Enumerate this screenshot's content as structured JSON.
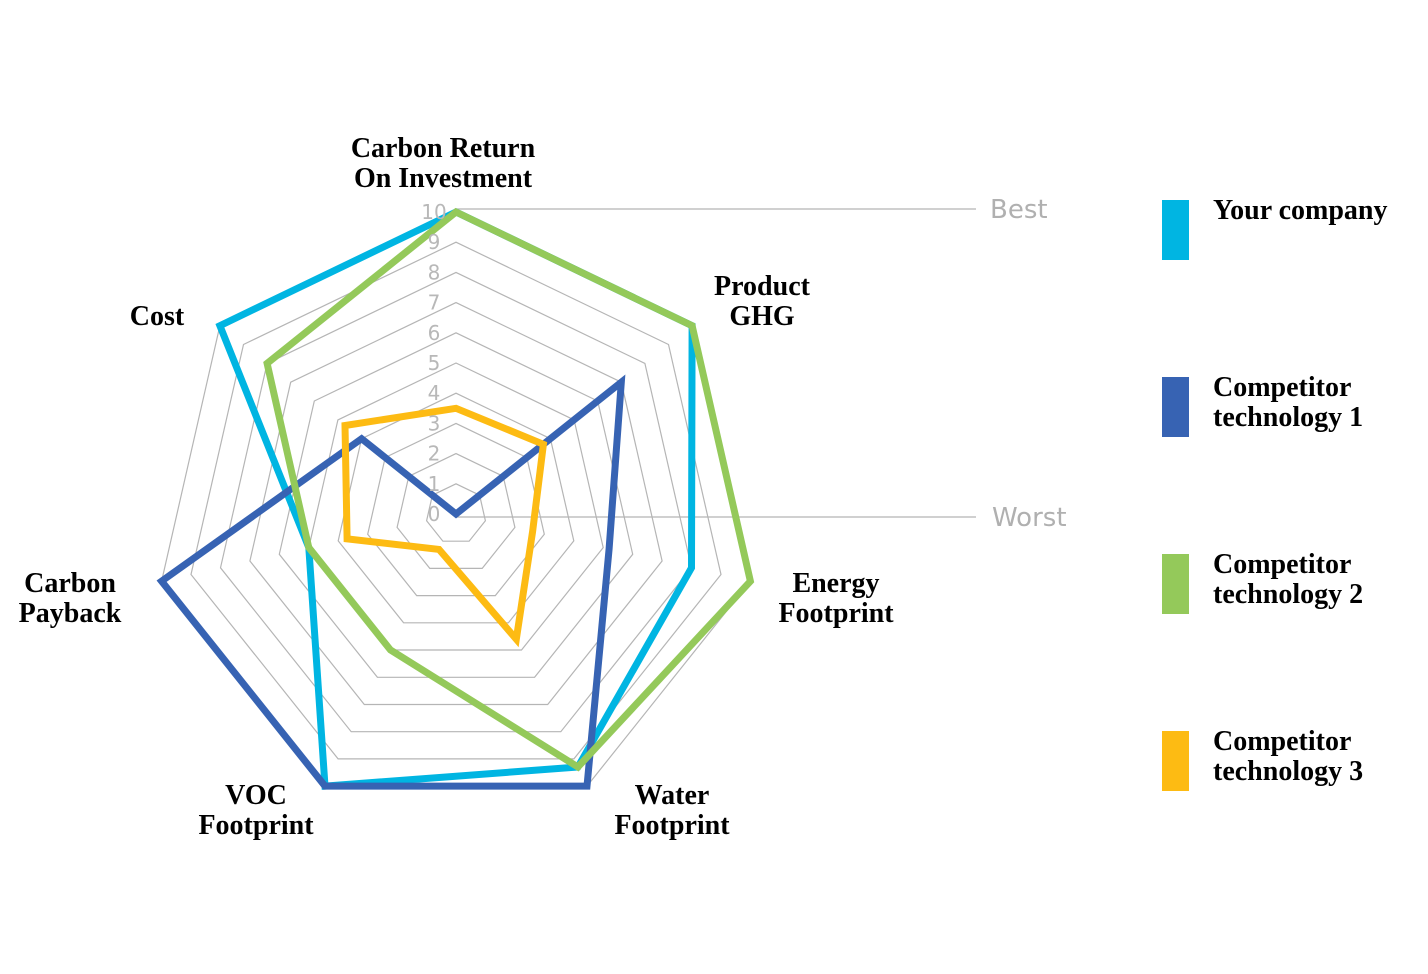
{
  "chart_data": {
    "type": "radar",
    "axes": [
      [
        "Carbon Return",
        "On Investment"
      ],
      [
        "Product",
        "GHG"
      ],
      [
        "Energy",
        "Footprint"
      ],
      [
        "Water",
        "Footprint"
      ],
      [
        "VOC",
        "Footprint"
      ],
      [
        "Carbon",
        "Payback"
      ],
      [
        "Cost"
      ]
    ],
    "ticks": [
      "0",
      "1",
      "2",
      "3",
      "4",
      "5",
      "6",
      "7",
      "8",
      "9",
      "10"
    ],
    "range": [
      0,
      10
    ],
    "scale_labels": {
      "max": "Best",
      "min": "Worst"
    },
    "series": [
      {
        "name": "Your company",
        "color": "#00b5e2",
        "values": [
          10,
          10,
          8,
          9.3,
          10,
          5,
          10
        ]
      },
      {
        "name": "Competitor technology 1",
        "color": "#3763b3",
        "values": [
          0,
          7,
          5.2,
          10,
          10,
          10,
          4
        ]
      },
      {
        "name": "Competitor technology 2",
        "color": "#94c95a",
        "values": [
          10,
          10,
          10,
          9.3,
          5,
          5,
          8
        ]
      },
      {
        "name": "Competitor technology 3",
        "color": "#fdbb13",
        "values": [
          3.5,
          3.7,
          2.6,
          4.6,
          1.3,
          3.7,
          4.7
        ]
      }
    ]
  },
  "legend": {
    "items": [
      {
        "label": "Your company",
        "color": "#00b5e2"
      },
      {
        "label": "Competitor technology 1",
        "color": "#3763b3"
      },
      {
        "label": "Competitor technology 2",
        "color": "#94c95a"
      },
      {
        "label": "Competitor technology 3",
        "color": "#fdbb13"
      }
    ]
  }
}
